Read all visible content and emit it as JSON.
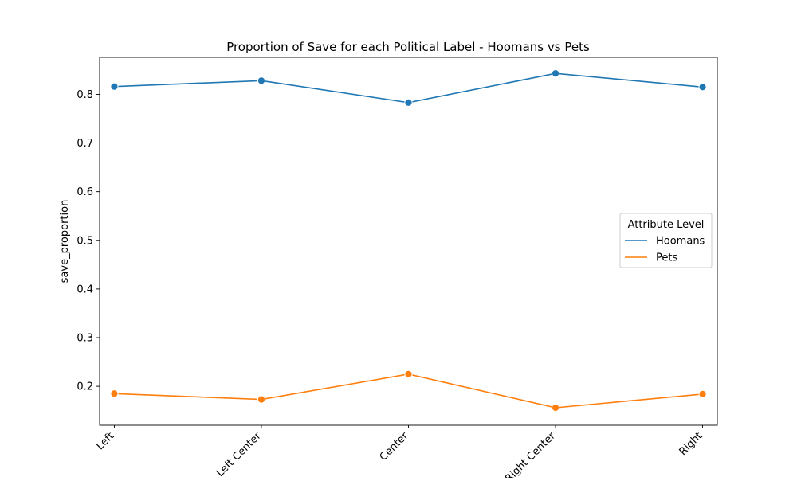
{
  "chart_data": {
    "type": "line",
    "title": "Proportion of Save for each Political Label - Hoomans vs Pets",
    "xlabel": "",
    "ylabel": "save_proportion",
    "categories": [
      "Left",
      "Left Center",
      "Center",
      "Right Center",
      "Right"
    ],
    "ylim": [
      0.12,
      0.876
    ],
    "yticks": [
      0.2,
      0.3,
      0.4,
      0.5,
      0.6,
      0.7,
      0.8
    ],
    "ytick_labels": [
      "0.2",
      "0.3",
      "0.4",
      "0.5",
      "0.6",
      "0.7",
      "0.8"
    ],
    "grid": false,
    "legend": {
      "title": "Attribute Level",
      "placement": "center-right"
    },
    "series": [
      {
        "name": "Hoomans",
        "color": "#1f77b4",
        "values": [
          0.816,
          0.828,
          0.783,
          0.843,
          0.815
        ]
      },
      {
        "name": "Pets",
        "color": "#ff7f0e",
        "values": [
          0.185,
          0.173,
          0.225,
          0.156,
          0.184
        ]
      }
    ]
  }
}
